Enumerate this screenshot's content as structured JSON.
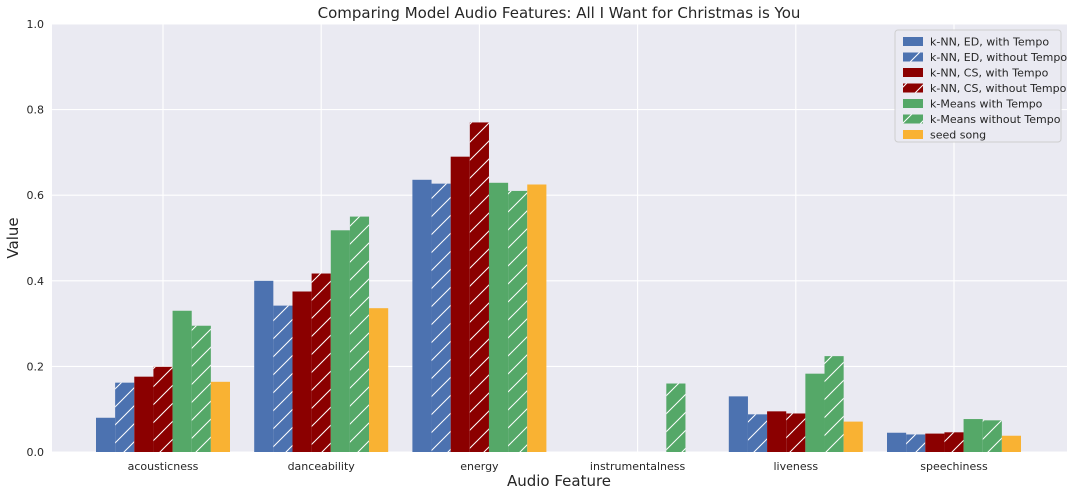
{
  "chart_data": {
    "type": "bar",
    "title": "Comparing Model Audio Features: All I Want for Christmas is You",
    "xlabel": "Audio Feature",
    "ylabel": "Value",
    "ylim": [
      0,
      1.0
    ],
    "yticks": [
      "0.0",
      "0.2",
      "0.4",
      "0.6",
      "0.8",
      "1.0"
    ],
    "grid": true,
    "legend_position": "top-right",
    "categories": [
      "acousticness",
      "danceability",
      "energy",
      "instrumentalness",
      "liveness",
      "speechiness"
    ],
    "series": [
      {
        "name": "k-NN, ED, with Tempo",
        "color": "#4c72b0",
        "hatch": false,
        "values": [
          0.08,
          0.4,
          0.636,
          0.0,
          0.13,
          0.045
        ]
      },
      {
        "name": "k-NN, ED, without Tempo",
        "color": "#4c72b0",
        "hatch": true,
        "values": [
          0.162,
          0.342,
          0.627,
          0.0,
          0.088,
          0.041
        ]
      },
      {
        "name": "k-NN, CS, with Tempo",
        "color": "#8b0000",
        "hatch": false,
        "values": [
          0.176,
          0.375,
          0.69,
          0.0,
          0.095,
          0.043
        ]
      },
      {
        "name": "k-NN, CS, without Tempo",
        "color": "#8b0000",
        "hatch": true,
        "values": [
          0.199,
          0.417,
          0.77,
          0.0,
          0.09,
          0.046
        ]
      },
      {
        "name": "k-Means with Tempo",
        "color": "#55a868",
        "hatch": false,
        "values": [
          0.33,
          0.518,
          0.629,
          0.0,
          0.183,
          0.077
        ]
      },
      {
        "name": "k-Means without Tempo",
        "color": "#55a868",
        "hatch": true,
        "values": [
          0.295,
          0.55,
          0.61,
          0.16,
          0.224,
          0.074
        ]
      },
      {
        "name": "seed song",
        "color": "#f9b233",
        "hatch": false,
        "values": [
          0.164,
          0.336,
          0.625,
          0.0,
          0.071,
          0.038
        ]
      }
    ]
  }
}
